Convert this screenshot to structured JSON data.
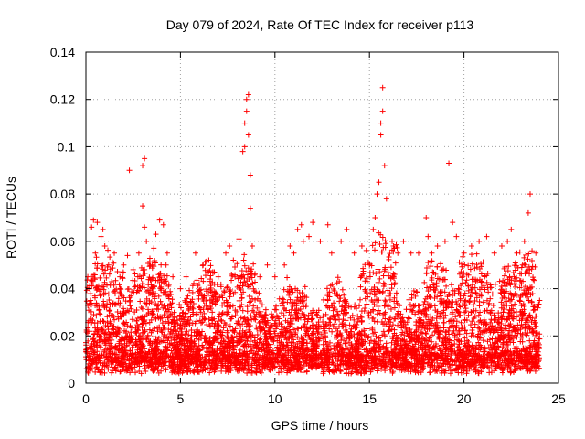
{
  "chart_data": {
    "type": "scatter",
    "title": "Day 079 of 2024, Rate Of TEC Index for receiver p113",
    "xlabel": "GPS time / hours",
    "ylabel": "ROTI / TECUs",
    "xlim": [
      0,
      25
    ],
    "ylim": [
      0,
      0.14
    ],
    "x_ticks": [
      0,
      5,
      10,
      15,
      20,
      25
    ],
    "x_tick_labels": [
      "0",
      "5",
      "10",
      "15",
      "20",
      "25"
    ],
    "y_ticks": [
      0,
      0.02,
      0.04,
      0.06,
      0.08,
      0.1,
      0.12,
      0.14
    ],
    "y_tick_labels": [
      "0",
      "0.02",
      "0.04",
      "0.06",
      "0.08",
      "0.1",
      "0.12",
      "0.14"
    ],
    "grid": true,
    "marker": "+",
    "marker_color": "#ff0000",
    "series": [
      {
        "name": "ROTI",
        "points": [
          [
            0.1,
            0.045
          ],
          [
            0.2,
            0.04
          ],
          [
            0.3,
            0.066
          ],
          [
            0.4,
            0.069
          ],
          [
            0.5,
            0.055
          ],
          [
            0.6,
            0.068
          ],
          [
            0.8,
            0.062
          ],
          [
            0.9,
            0.065
          ],
          [
            1.0,
            0.058
          ],
          [
            1.2,
            0.05
          ],
          [
            1.5,
            0.055
          ],
          [
            1.8,
            0.045
          ],
          [
            2.0,
            0.05
          ],
          [
            2.2,
            0.054
          ],
          [
            2.3,
            0.09
          ],
          [
            2.5,
            0.048
          ],
          [
            2.8,
            0.055
          ],
          [
            3.0,
            0.075
          ],
          [
            3.0,
            0.092
          ],
          [
            3.1,
            0.095
          ],
          [
            3.1,
            0.066
          ],
          [
            3.2,
            0.06
          ],
          [
            3.5,
            0.05
          ],
          [
            3.7,
            0.063
          ],
          [
            3.9,
            0.069
          ],
          [
            4.1,
            0.067
          ],
          [
            4.3,
            0.055
          ],
          [
            4.6,
            0.045
          ],
          [
            5.0,
            0.04
          ],
          [
            5.3,
            0.045
          ],
          [
            5.8,
            0.055
          ],
          [
            6.2,
            0.05
          ],
          [
            6.5,
            0.052
          ],
          [
            7.0,
            0.045
          ],
          [
            7.4,
            0.055
          ],
          [
            7.6,
            0.058
          ],
          [
            7.8,
            0.052
          ],
          [
            8.1,
            0.061
          ],
          [
            8.3,
            0.098
          ],
          [
            8.4,
            0.1
          ],
          [
            8.4,
            0.11
          ],
          [
            8.5,
            0.115
          ],
          [
            8.5,
            0.12
          ],
          [
            8.6,
            0.122
          ],
          [
            8.6,
            0.105
          ],
          [
            8.7,
            0.088
          ],
          [
            8.7,
            0.074
          ],
          [
            8.8,
            0.058
          ],
          [
            9.2,
            0.045
          ],
          [
            9.6,
            0.05
          ],
          [
            10.0,
            0.045
          ],
          [
            10.5,
            0.05
          ],
          [
            10.8,
            0.058
          ],
          [
            11.0,
            0.055
          ],
          [
            11.2,
            0.065
          ],
          [
            11.4,
            0.067
          ],
          [
            11.5,
            0.06
          ],
          [
            11.8,
            0.062
          ],
          [
            12.0,
            0.068
          ],
          [
            12.4,
            0.06
          ],
          [
            12.8,
            0.067
          ],
          [
            13.0,
            0.055
          ],
          [
            13.5,
            0.06
          ],
          [
            13.8,
            0.065
          ],
          [
            14.2,
            0.055
          ],
          [
            14.6,
            0.058
          ],
          [
            15.0,
            0.05
          ],
          [
            15.2,
            0.065
          ],
          [
            15.3,
            0.07
          ],
          [
            15.4,
            0.08
          ],
          [
            15.5,
            0.085
          ],
          [
            15.6,
            0.105
          ],
          [
            15.6,
            0.11
          ],
          [
            15.7,
            0.115
          ],
          [
            15.7,
            0.125
          ],
          [
            15.8,
            0.092
          ],
          [
            15.9,
            0.078
          ],
          [
            16.2,
            0.06
          ],
          [
            16.5,
            0.055
          ],
          [
            16.8,
            0.06
          ],
          [
            17.2,
            0.055
          ],
          [
            17.6,
            0.055
          ],
          [
            18.0,
            0.07
          ],
          [
            18.1,
            0.062
          ],
          [
            18.3,
            0.055
          ],
          [
            18.6,
            0.058
          ],
          [
            19.0,
            0.06
          ],
          [
            19.2,
            0.093
          ],
          [
            19.4,
            0.068
          ],
          [
            19.6,
            0.062
          ],
          [
            20.0,
            0.055
          ],
          [
            20.4,
            0.058
          ],
          [
            20.8,
            0.06
          ],
          [
            21.2,
            0.062
          ],
          [
            21.6,
            0.055
          ],
          [
            22.0,
            0.058
          ],
          [
            22.3,
            0.06
          ],
          [
            22.5,
            0.065
          ],
          [
            22.8,
            0.055
          ],
          [
            23.2,
            0.06
          ],
          [
            23.4,
            0.072
          ],
          [
            23.5,
            0.08
          ],
          [
            23.6,
            0.056
          ],
          [
            23.8,
            0.055
          ],
          [
            24.0,
            0.035
          ]
        ]
      }
    ]
  }
}
